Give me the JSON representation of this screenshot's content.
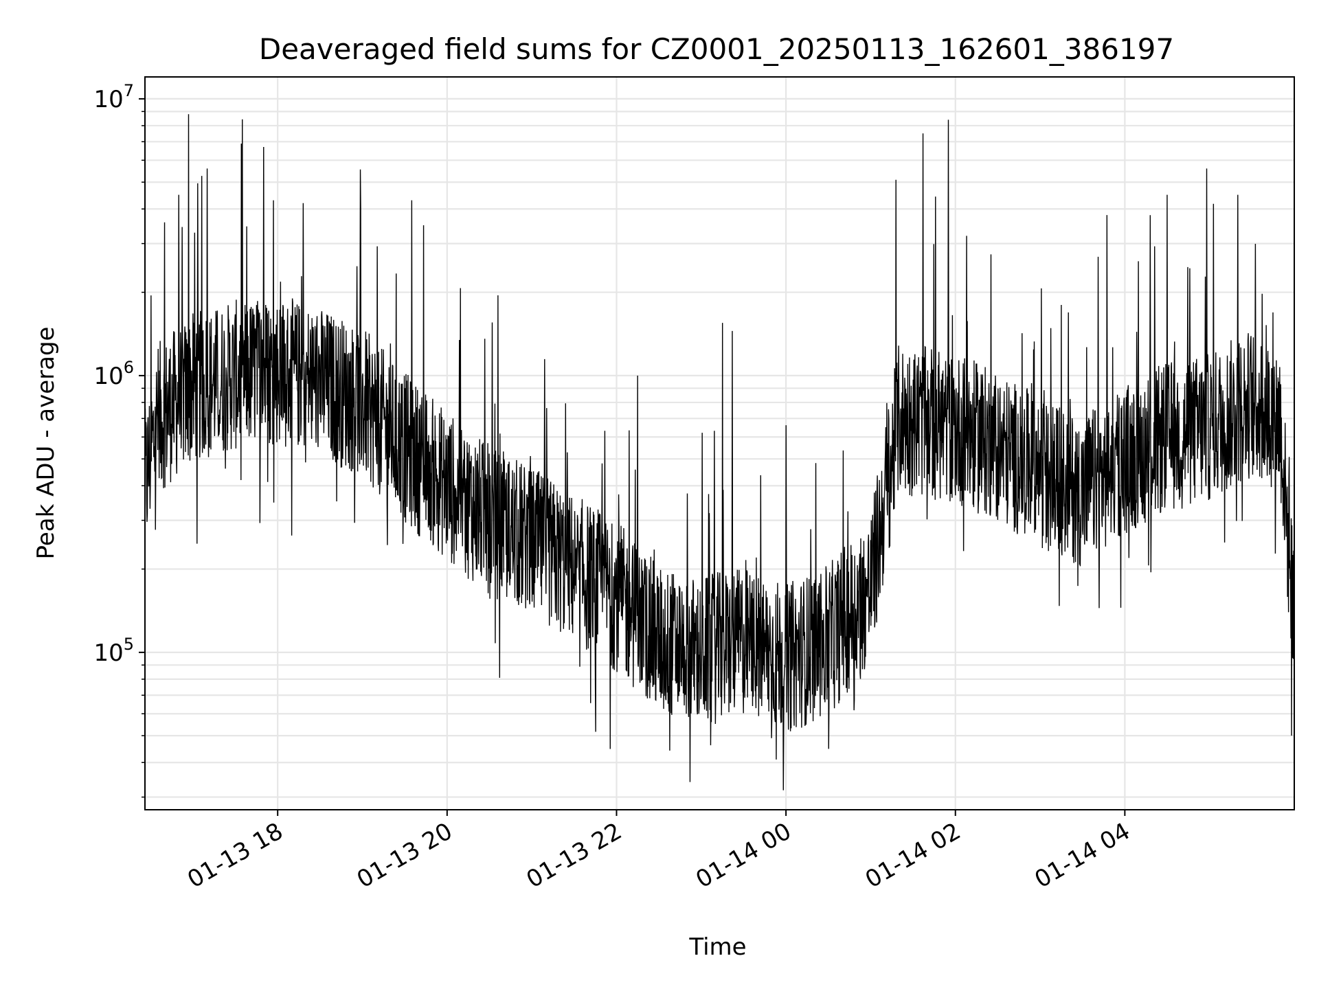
{
  "chart_data": {
    "type": "line",
    "title": "Deaveraged field sums for CZ0001_20250113_162601_386197",
    "xlabel": "Time",
    "ylabel": "Peak ADU - average",
    "yscale": "log",
    "ylim": [
      27000,
      12000000
    ],
    "xlim": [
      "2025-01-13 16:26",
      "2025-01-14 06:00"
    ],
    "grid": true,
    "line_color": "#000000",
    "grid_color": "#e6e6e6",
    "x_ticks": [
      {
        "x": "2025-01-13 18:00",
        "label": "01-13 18"
      },
      {
        "x": "2025-01-13 20:00",
        "label": "01-13 20"
      },
      {
        "x": "2025-01-13 22:00",
        "label": "01-13 22"
      },
      {
        "x": "2025-01-14 00:00",
        "label": "01-14 00"
      },
      {
        "x": "2025-01-14 02:00",
        "label": "01-14 02"
      },
      {
        "x": "2025-01-14 04:00",
        "label": "01-14 04"
      }
    ],
    "y_ticks": [
      {
        "y": 100000,
        "base": "10",
        "exp": "5"
      },
      {
        "y": 1000000,
        "base": "10",
        "exp": "6"
      },
      {
        "y": 10000000,
        "base": "10",
        "exp": "7"
      }
    ],
    "series": [
      {
        "baseline": {
          "x": [
            "2025-01-13 16:26",
            "2025-01-13 16:35",
            "2025-01-13 17:00",
            "2025-01-13 17:30",
            "2025-01-13 18:00",
            "2025-01-13 18:30",
            "2025-01-13 19:00",
            "2025-01-13 19:30",
            "2025-01-13 20:00",
            "2025-01-13 20:30",
            "2025-01-13 21:00",
            "2025-01-13 21:30",
            "2025-01-13 22:00",
            "2025-01-13 22:30",
            "2025-01-13 23:00",
            "2025-01-13 23:30",
            "2025-01-14 00:00",
            "2025-01-14 00:30",
            "2025-01-14 01:00",
            "2025-01-14 01:10",
            "2025-01-14 01:20",
            "2025-01-14 02:00",
            "2025-01-14 02:30",
            "2025-01-14 03:00",
            "2025-01-14 03:30",
            "2025-01-14 04:00",
            "2025-01-14 04:30",
            "2025-01-14 05:00",
            "2025-01-14 05:30",
            "2025-01-14 05:50",
            "2025-01-14 06:00"
          ],
          "y": [
            400000,
            700000,
            900000,
            1000000,
            1050000,
            950000,
            800000,
            550000,
            400000,
            300000,
            250000,
            200000,
            160000,
            110000,
            100000,
            110000,
            95000,
            110000,
            170000,
            350000,
            700000,
            650000,
            550000,
            450000,
            380000,
            500000,
            600000,
            650000,
            800000,
            700000,
            120000
          ]
        },
        "spikes": [
          {
            "x": "2025-01-13 16:50",
            "y": 4500000
          },
          {
            "x": "2025-01-13 16:57",
            "y": 8800000
          },
          {
            "x": "2025-01-13 17:10",
            "y": 5600000
          },
          {
            "x": "2025-01-13 17:50",
            "y": 6700000
          },
          {
            "x": "2025-01-13 17:57",
            "y": 4300000
          },
          {
            "x": "2025-01-13 18:18",
            "y": 4200000
          },
          {
            "x": "2025-01-13 19:35",
            "y": 4300000
          },
          {
            "x": "2025-01-13 20:36",
            "y": 1950000
          },
          {
            "x": "2025-01-13 22:15",
            "y": 1000000
          },
          {
            "x": "2025-01-13 22:52",
            "y": 34000
          },
          {
            "x": "2025-01-13 23:15",
            "y": 1550000
          },
          {
            "x": "2025-01-13 23:22",
            "y": 1450000
          },
          {
            "x": "2025-01-13 23:53",
            "y": 41000
          },
          {
            "x": "2025-01-14 00:55",
            "y": 140000
          },
          {
            "x": "2025-01-14 01:18",
            "y": 5100000
          },
          {
            "x": "2025-01-14 01:37",
            "y": 7500000
          },
          {
            "x": "2025-01-14 01:55",
            "y": 8400000
          },
          {
            "x": "2025-01-14 02:08",
            "y": 3200000
          },
          {
            "x": "2025-01-14 03:15",
            "y": 1800000
          },
          {
            "x": "2025-01-14 04:18",
            "y": 3800000
          },
          {
            "x": "2025-01-14 04:30",
            "y": 4500000
          },
          {
            "x": "2025-01-14 04:58",
            "y": 5600000
          },
          {
            "x": "2025-01-14 05:20",
            "y": 4500000
          },
          {
            "x": "2025-01-14 05:58",
            "y": 50000
          }
        ]
      }
    ]
  }
}
